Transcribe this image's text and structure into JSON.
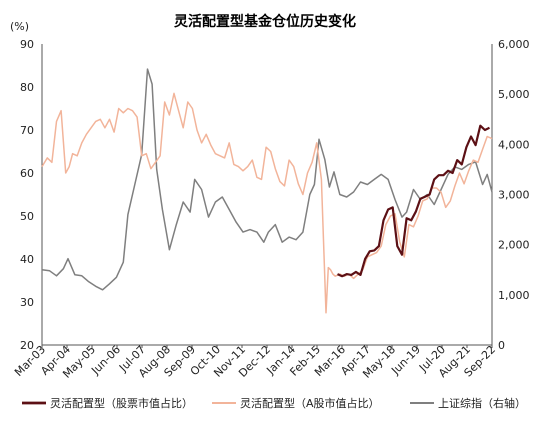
{
  "chart_data": {
    "type": "line",
    "title": "灵活配置型基金仓位历史变化",
    "left_unit": "(%)",
    "yleft": {
      "min": 20,
      "max": 90,
      "ticks": [
        "20",
        "30",
        "40",
        "50",
        "60",
        "70",
        "80",
        "90"
      ]
    },
    "yright": {
      "min": 0,
      "max": 6000,
      "ticks": [
        "0",
        "1,000",
        "2,000",
        "3,000",
        "4,000",
        "5,000",
        "6,000"
      ]
    },
    "x_labels": [
      "Mar-03",
      "Apr-04",
      "May-05",
      "Jun-06",
      "Jul-07",
      "Aug-08",
      "Sep-09",
      "Oct-10",
      "Nov-11",
      "Dec-12",
      "Jan-14",
      "Feb-15",
      "Mar-16",
      "Apr-17",
      "May-18",
      "Jun-19",
      "Jul-20",
      "Aug-21",
      "Sep-22"
    ],
    "x_start": 2003.17,
    "x_end": 2022.71,
    "series": [
      {
        "name": "灵活配置型（股票市值占比）",
        "color": "#5c1015",
        "width": 2.2,
        "axis": "left",
        "x": [
          2016.0,
          2016.2,
          2016.4,
          2016.6,
          2016.8,
          2017.0,
          2017.2,
          2017.4,
          2017.6,
          2017.8,
          2018.0,
          2018.2,
          2018.4,
          2018.6,
          2018.8,
          2019.0,
          2019.2,
          2019.4,
          2019.6,
          2019.8,
          2020.0,
          2020.2,
          2020.4,
          2020.6,
          2020.8,
          2021.0,
          2021.2,
          2021.4,
          2021.6,
          2021.8,
          2022.0,
          2022.2,
          2022.4,
          2022.6
        ],
        "values": [
          36.5,
          36.0,
          36.5,
          36.3,
          37.0,
          36.3,
          40.0,
          41.8,
          42.0,
          43.0,
          49.0,
          51.5,
          52.0,
          43.0,
          41.0,
          49.5,
          49.0,
          51.0,
          54.0,
          54.5,
          55.0,
          58.5,
          59.5,
          59.5,
          60.5,
          60.0,
          63.0,
          62.0,
          66.0,
          68.5,
          66.5,
          71.0,
          70.0,
          70.5
        ]
      },
      {
        "name": "灵活配置型（A股市值占比）",
        "color": "#f2b49a",
        "width": 1.5,
        "axis": "left",
        "x": [
          2003.17,
          2003.4,
          2003.6,
          2003.8,
          2004.0,
          2004.2,
          2004.35,
          2004.5,
          2004.7,
          2004.9,
          2005.1,
          2005.3,
          2005.5,
          2005.7,
          2005.9,
          2006.1,
          2006.3,
          2006.5,
          2006.7,
          2006.9,
          2007.1,
          2007.3,
          2007.5,
          2007.7,
          2007.9,
          2008.1,
          2008.3,
          2008.5,
          2008.7,
          2008.9,
          2009.1,
          2009.3,
          2009.5,
          2009.7,
          2009.9,
          2010.1,
          2010.3,
          2010.5,
          2010.7,
          2010.9,
          2011.1,
          2011.3,
          2011.5,
          2011.7,
          2011.9,
          2012.1,
          2012.3,
          2012.5,
          2012.7,
          2012.9,
          2013.1,
          2013.3,
          2013.5,
          2013.7,
          2013.9,
          2014.1,
          2014.3,
          2014.5,
          2014.7,
          2014.9,
          2015.1,
          2015.3,
          2015.5,
          2015.6,
          2015.7,
          2015.8,
          2015.9,
          2016.1,
          2016.3,
          2016.5,
          2016.7,
          2016.9,
          2017.1,
          2017.3,
          2017.5,
          2017.7,
          2017.9,
          2018.1,
          2018.3,
          2018.5,
          2018.7,
          2018.9,
          2019.1,
          2019.3,
          2019.5,
          2019.7,
          2019.9,
          2020.1,
          2020.3,
          2020.5,
          2020.7,
          2020.9,
          2021.1,
          2021.3,
          2021.5,
          2021.7,
          2021.9,
          2022.1,
          2022.3,
          2022.5,
          2022.71
        ],
        "values": [
          61.5,
          63.5,
          62.5,
          72.0,
          74.5,
          60.0,
          61.5,
          64.5,
          64.0,
          67.0,
          69.0,
          70.5,
          72.0,
          72.5,
          70.5,
          72.5,
          69.5,
          75.0,
          74.0,
          75.0,
          74.5,
          73.0,
          64.0,
          64.5,
          61.0,
          62.5,
          64.0,
          76.5,
          73.5,
          78.5,
          74.5,
          70.5,
          76.5,
          75.0,
          70.0,
          67.0,
          69.0,
          66.5,
          64.5,
          64.0,
          63.5,
          67.0,
          62.0,
          61.5,
          60.5,
          61.5,
          63.0,
          59.0,
          58.5,
          66.0,
          65.0,
          61.0,
          58.0,
          57.0,
          63.0,
          61.5,
          57.5,
          55.0,
          60.0,
          62.5,
          67.0,
          58.5,
          27.5,
          38.0,
          37.5,
          36.5,
          36.0,
          36.5,
          36.0,
          36.5,
          35.5,
          36.5,
          37.5,
          40.5,
          41.0,
          41.5,
          43.0,
          48.0,
          50.0,
          50.5,
          44.0,
          40.5,
          48.0,
          47.5,
          50.0,
          53.5,
          54.0,
          56.5,
          56.5,
          55.5,
          52.0,
          53.5,
          57.0,
          60.0,
          57.5,
          60.5,
          63.0,
          62.5,
          65.5,
          68.5,
          68.0
        ]
      },
      {
        "name": "上证综指（右轴）",
        "color": "#7f7f7f",
        "width": 1.5,
        "axis": "right",
        "x": [
          2003.17,
          2003.5,
          2003.8,
          2004.1,
          2004.3,
          2004.6,
          2004.9,
          2005.2,
          2005.5,
          2005.8,
          2006.1,
          2006.4,
          2006.7,
          2006.9,
          2007.2,
          2007.5,
          2007.75,
          2007.95,
          2008.15,
          2008.4,
          2008.7,
          2009.0,
          2009.3,
          2009.6,
          2009.8,
          2010.1,
          2010.4,
          2010.7,
          2011.0,
          2011.3,
          2011.6,
          2011.9,
          2012.2,
          2012.5,
          2012.8,
          2013.0,
          2013.3,
          2013.6,
          2013.9,
          2014.2,
          2014.5,
          2014.8,
          2015.0,
          2015.2,
          2015.45,
          2015.65,
          2015.85,
          2016.1,
          2016.4,
          2016.7,
          2017.0,
          2017.3,
          2017.6,
          2017.9,
          2018.2,
          2018.5,
          2018.8,
          2019.0,
          2019.3,
          2019.6,
          2019.9,
          2020.2,
          2020.5,
          2020.8,
          2021.1,
          2021.4,
          2021.7,
          2022.0,
          2022.3,
          2022.5,
          2022.71
        ],
        "values": [
          1500,
          1480,
          1380,
          1520,
          1720,
          1400,
          1380,
          1260,
          1170,
          1100,
          1220,
          1350,
          1650,
          2600,
          3200,
          3800,
          5500,
          5200,
          3500,
          2700,
          1900,
          2400,
          2850,
          2650,
          3300,
          3100,
          2550,
          2850,
          2950,
          2700,
          2450,
          2250,
          2300,
          2250,
          2050,
          2250,
          2400,
          2050,
          2150,
          2100,
          2250,
          3000,
          3200,
          4100,
          3700,
          3150,
          3450,
          3000,
          2950,
          3050,
          3250,
          3200,
          3300,
          3400,
          3300,
          2900,
          2550,
          2650,
          3100,
          2900,
          3000,
          2800,
          3100,
          3400,
          3550,
          3500,
          3600,
          3650,
          3200,
          3400,
          3050
        ]
      }
    ],
    "legend": {
      "placement": "bottom"
    }
  }
}
